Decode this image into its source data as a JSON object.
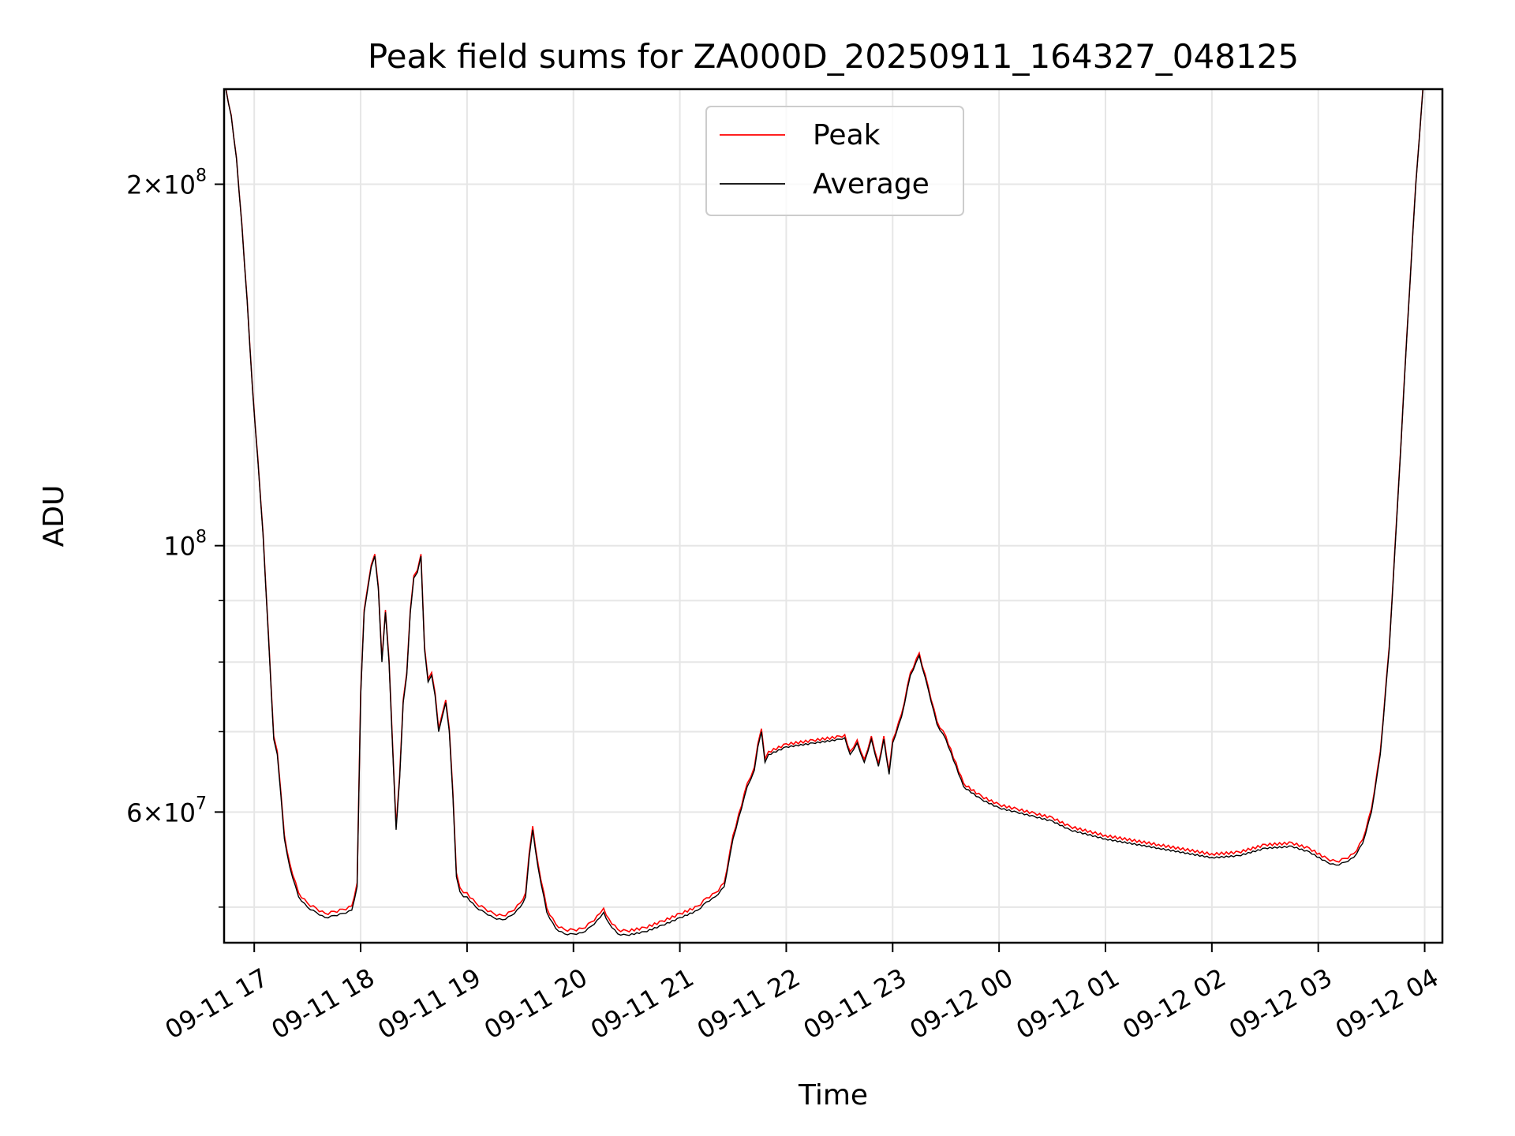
{
  "chart_data": {
    "type": "line",
    "title": "Peak field sums for ZA000D_20250911_164327_048125",
    "xlabel": "Time",
    "ylabel": "ADU",
    "yscale": "log",
    "grid": true,
    "legend_position": "upper-center",
    "xlim": [
      "2025-09-11 16:43",
      "2025-09-12 04:10"
    ],
    "ylim": [
      46700000,
      240000000
    ],
    "x_ticks": [
      {
        "value": "2025-09-11 17:00",
        "label": "09-11 17"
      },
      {
        "value": "2025-09-11 18:00",
        "label": "09-11 18"
      },
      {
        "value": "2025-09-11 19:00",
        "label": "09-11 19"
      },
      {
        "value": "2025-09-11 20:00",
        "label": "09-11 20"
      },
      {
        "value": "2025-09-11 21:00",
        "label": "09-11 21"
      },
      {
        "value": "2025-09-11 22:00",
        "label": "09-11 22"
      },
      {
        "value": "2025-09-11 23:00",
        "label": "09-11 23"
      },
      {
        "value": "2025-09-12 00:00",
        "label": "09-12 00"
      },
      {
        "value": "2025-09-12 01:00",
        "label": "09-12 01"
      },
      {
        "value": "2025-09-12 02:00",
        "label": "09-12 02"
      },
      {
        "value": "2025-09-12 03:00",
        "label": "09-12 03"
      },
      {
        "value": "2025-09-12 04:00",
        "label": "09-12 04"
      }
    ],
    "y_ticks": [
      {
        "value": 60000000,
        "base": "6",
        "exp": "7"
      },
      {
        "value": 100000000,
        "base": "",
        "exp": "8"
      },
      {
        "value": 200000000,
        "base": "2",
        "exp": "8"
      }
    ],
    "y_minor_ticks": [
      50000000,
      70000000,
      80000000,
      90000000
    ],
    "series": [
      {
        "name": "Peak",
        "color": "#ff0000",
        "offset": 400000
      },
      {
        "name": "Average",
        "color": "#000000",
        "x": [
          "2025-09-11 16:44",
          "2025-09-11 16:47",
          "2025-09-11 16:50",
          "2025-09-11 16:53",
          "2025-09-11 16:56",
          "2025-09-11 16:59",
          "2025-09-11 17:02",
          "2025-09-11 17:05",
          "2025-09-11 17:08",
          "2025-09-11 17:11",
          "2025-09-11 17:13",
          "2025-09-11 17:15",
          "2025-09-11 17:17",
          "2025-09-11 17:20",
          "2025-09-11 17:25",
          "2025-09-11 17:30",
          "2025-09-11 17:35",
          "2025-09-11 17:40",
          "2025-09-11 17:45",
          "2025-09-11 17:50",
          "2025-09-11 17:55",
          "2025-09-11 17:58",
          "2025-09-11 18:00",
          "2025-09-11 18:02",
          "2025-09-11 18:04",
          "2025-09-11 18:06",
          "2025-09-11 18:08",
          "2025-09-11 18:10",
          "2025-09-11 18:12",
          "2025-09-11 18:14",
          "2025-09-11 18:16",
          "2025-09-11 18:18",
          "2025-09-11 18:20",
          "2025-09-11 18:22",
          "2025-09-11 18:24",
          "2025-09-11 18:26",
          "2025-09-11 18:28",
          "2025-09-11 18:30",
          "2025-09-11 18:32",
          "2025-09-11 18:34",
          "2025-09-11 18:36",
          "2025-09-11 18:38",
          "2025-09-11 18:40",
          "2025-09-11 18:42",
          "2025-09-11 18:44",
          "2025-09-11 18:46",
          "2025-09-11 18:48",
          "2025-09-11 18:50",
          "2025-09-11 18:52",
          "2025-09-11 18:54",
          "2025-09-11 18:56",
          "2025-09-11 18:58",
          "2025-09-11 19:00",
          "2025-09-11 19:05",
          "2025-09-11 19:10",
          "2025-09-11 19:15",
          "2025-09-11 19:20",
          "2025-09-11 19:25",
          "2025-09-11 19:30",
          "2025-09-11 19:33",
          "2025-09-11 19:35",
          "2025-09-11 19:37",
          "2025-09-11 19:40",
          "2025-09-11 19:45",
          "2025-09-11 19:50",
          "2025-09-11 19:55",
          "2025-09-11 20:00",
          "2025-09-11 20:05",
          "2025-09-11 20:10",
          "2025-09-11 20:15",
          "2025-09-11 20:17",
          "2025-09-11 20:20",
          "2025-09-11 20:25",
          "2025-09-11 20:30",
          "2025-09-11 20:40",
          "2025-09-11 20:50",
          "2025-09-11 21:00",
          "2025-09-11 21:10",
          "2025-09-11 21:15",
          "2025-09-11 21:20",
          "2025-09-11 21:25",
          "2025-09-11 21:30",
          "2025-09-11 21:38",
          "2025-09-11 21:42",
          "2025-09-11 21:44",
          "2025-09-11 21:46",
          "2025-09-11 21:48",
          "2025-09-11 21:50",
          "2025-09-11 22:00",
          "2025-09-11 22:15",
          "2025-09-11 22:30",
          "2025-09-11 22:33",
          "2025-09-11 22:36",
          "2025-09-11 22:40",
          "2025-09-11 22:44",
          "2025-09-11 22:48",
          "2025-09-11 22:52",
          "2025-09-11 22:55",
          "2025-09-11 22:58",
          "2025-09-11 23:00",
          "2025-09-11 23:05",
          "2025-09-11 23:10",
          "2025-09-11 23:15",
          "2025-09-11 23:20",
          "2025-09-11 23:25",
          "2025-09-11 23:30",
          "2025-09-11 23:40",
          "2025-09-11 23:50",
          "2025-09-12 00:00",
          "2025-09-12 00:10",
          "2025-09-12 00:20",
          "2025-09-12 00:30",
          "2025-09-12 00:40",
          "2025-09-12 01:00",
          "2025-09-12 01:30",
          "2025-09-12 02:00",
          "2025-09-12 02:15",
          "2025-09-12 02:30",
          "2025-09-12 02:45",
          "2025-09-12 02:55",
          "2025-09-12 03:05",
          "2025-09-12 03:10",
          "2025-09-12 03:15",
          "2025-09-12 03:20",
          "2025-09-12 03:25",
          "2025-09-12 03:30",
          "2025-09-12 03:35",
          "2025-09-12 03:40",
          "2025-09-12 03:45",
          "2025-09-12 03:50",
          "2025-09-12 03:55",
          "2025-09-12 03:59"
        ],
        "values": [
          240000000,
          228000000,
          210000000,
          185000000,
          160000000,
          135000000,
          118000000,
          102000000,
          84000000,
          69000000,
          67000000,
          62000000,
          57000000,
          54000000,
          51000000,
          50000000,
          49500000,
          49000000,
          49200000,
          49400000,
          49700000,
          52000000,
          75000000,
          88000000,
          92000000,
          96000000,
          98000000,
          92000000,
          80000000,
          88000000,
          80000000,
          68000000,
          58000000,
          64000000,
          74000000,
          78000000,
          88000000,
          94000000,
          95000000,
          98000000,
          82000000,
          77000000,
          78000000,
          75000000,
          70000000,
          72000000,
          74000000,
          70000000,
          62000000,
          53000000,
          51500000,
          51000000,
          51000000,
          50000000,
          49500000,
          49000000,
          48800000,
          49200000,
          50000000,
          51000000,
          55000000,
          58000000,
          54000000,
          49500000,
          48000000,
          47500000,
          47500000,
          47600000,
          48200000,
          49000000,
          49500000,
          48500000,
          47500000,
          47400000,
          47700000,
          48300000,
          49000000,
          49700000,
          50500000,
          51000000,
          52000000,
          57000000,
          63000000,
          65000000,
          68000000,
          70000000,
          66000000,
          67000000,
          68000000,
          68500000,
          69000000,
          69200000,
          67000000,
          68500000,
          66000000,
          69000000,
          65500000,
          69000000,
          64500000,
          68500000,
          72000000,
          78000000,
          81000000,
          76000000,
          71000000,
          69000000,
          63000000,
          61500000,
          60500000,
          60000000,
          59500000,
          59000000,
          58000000,
          57000000,
          56000000,
          55000000,
          55200000,
          56000000,
          56200000,
          55600000,
          54500000,
          54200000,
          54500000,
          55000000,
          56500000,
          60000000,
          67000000,
          82000000,
          110000000,
          150000000,
          200000000,
          240000000
        ]
      }
    ]
  }
}
